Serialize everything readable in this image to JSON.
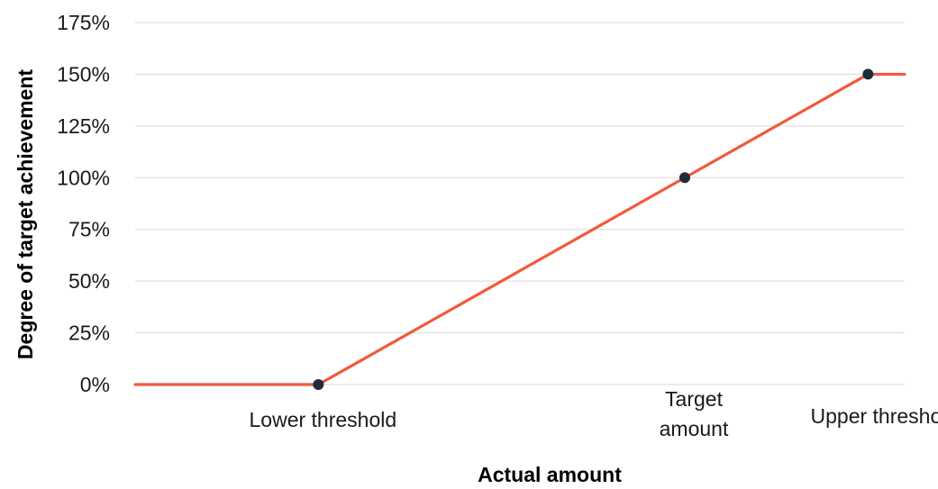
{
  "chart_data": {
    "type": "line",
    "title": "",
    "xlabel": "Actual amount",
    "ylabel": "Degree of target achievement",
    "ylim": [
      0,
      175
    ],
    "y_ticks": [
      0,
      25,
      50,
      75,
      100,
      125,
      150,
      175
    ],
    "y_tick_suffix": "%",
    "x_categories": [
      {
        "key": "lower",
        "label": "Lower threshold"
      },
      {
        "key": "target",
        "label": "Target amount"
      },
      {
        "key": "upper",
        "label": "Upper threshold"
      }
    ],
    "x_positions": {
      "start": 0,
      "lower": 1,
      "target": 3,
      "upper": 4,
      "end": 4.2
    },
    "series": [
      {
        "values": [
          {
            "x": "start",
            "y": 0
          },
          {
            "x": "lower",
            "y": 0
          },
          {
            "x": "target",
            "y": 100
          },
          {
            "x": "upper",
            "y": 150
          },
          {
            "x": "end",
            "y": 150
          }
        ],
        "markers": [
          "lower",
          "target",
          "upper"
        ]
      }
    ],
    "grid": true,
    "legend": "none"
  },
  "colors": {
    "line": "#f05a3c",
    "marker": "#1f2d3a",
    "grid": "#d9d9d9",
    "text": "#1a1a1a"
  }
}
